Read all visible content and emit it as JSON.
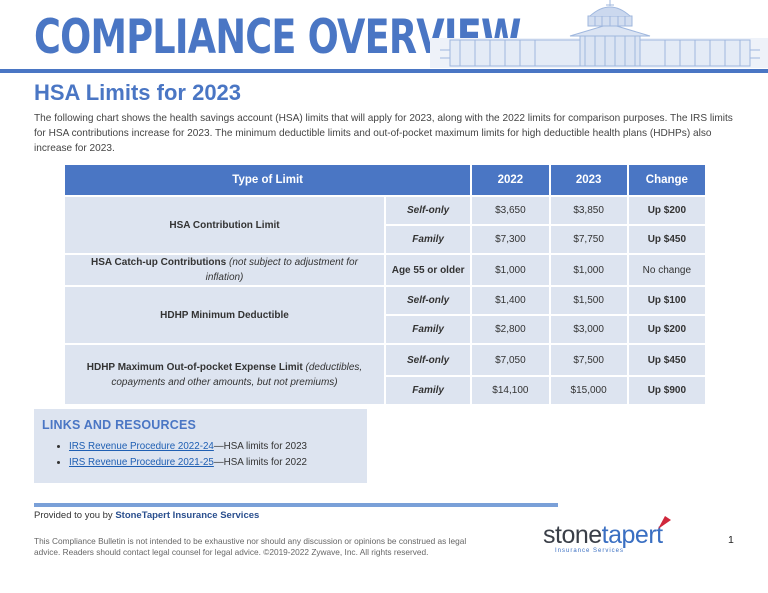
{
  "header": {
    "title": "COMPLIANCE OVERVIEW"
  },
  "page": {
    "title": "HSA Limits for 2023",
    "intro": "The following chart shows the health savings account (HSA) limits that will apply for 2023, along with the 2022 limits for comparison purposes. The IRS limits for HSA contributions increase for 2023. The minimum deductible limits and out-of-pocket maximum limits for high deductible health plans (HDHPs) also increase for 2023."
  },
  "table": {
    "headers": [
      "Type of Limit",
      "2022",
      "2023",
      "Change"
    ],
    "groups": [
      {
        "label": "HSA Contribution Limit",
        "label_note": "",
        "rows": [
          {
            "sub": "Self-only",
            "y2022": "$3,650",
            "y2023": "$3,850",
            "change": "Up $200"
          },
          {
            "sub": "Family",
            "y2022": "$7,300",
            "y2023": "$7,750",
            "change": "Up $450"
          }
        ]
      },
      {
        "label": "HSA Catch-up Contributions",
        "label_note": "(not subject to adjustment for inflation)",
        "rows": [
          {
            "sub": "Age 55 or older",
            "y2022": "$1,000",
            "y2023": "$1,000",
            "change": "No change"
          }
        ]
      },
      {
        "label": "HDHP Minimum Deductible",
        "label_note": "",
        "rows": [
          {
            "sub": "Self-only",
            "y2022": "$1,400",
            "y2023": "$1,500",
            "change": "Up $100"
          },
          {
            "sub": "Family",
            "y2022": "$2,800",
            "y2023": "$3,000",
            "change": "Up $200"
          }
        ]
      },
      {
        "label": "HDHP Maximum Out-of-pocket Expense Limit",
        "label_note": "(deductibles, copayments and other amounts, but not premiums)",
        "rows": [
          {
            "sub": "Self-only",
            "y2022": "$7,050",
            "y2023": "$7,500",
            "change": "Up $450"
          },
          {
            "sub": "Family",
            "y2022": "$14,100",
            "y2023": "$15,000",
            "change": "Up $900"
          }
        ]
      }
    ]
  },
  "links": {
    "title": "LINKS AND RESOURCES",
    "items": [
      {
        "link_text": "IRS Revenue Procedure 2022-24",
        "suffix": "—HSA limits for 2023"
      },
      {
        "link_text": "IRS Revenue Procedure 2021-25",
        "suffix": "—HSA limits for 2022"
      }
    ]
  },
  "footer": {
    "provided_prefix": "Provided to you by ",
    "provider": "StoneTapert Insurance Services",
    "disclaimer": "This Compliance Bulletin is not intended to be exhaustive nor should any discussion or opinions be construed as legal advice. Readers should contact legal counsel for legal advice. ©2019-2022 Zywave, Inc. All rights reserved.",
    "page_number": "1"
  },
  "logo": {
    "word_a": "stone",
    "word_b": "tapert",
    "tagline": "Insurance Services"
  },
  "colors": {
    "accent": "#4a76c4",
    "cell": "#dde4f0",
    "link": "#1f5fb3",
    "flag": "#d0283c"
  }
}
